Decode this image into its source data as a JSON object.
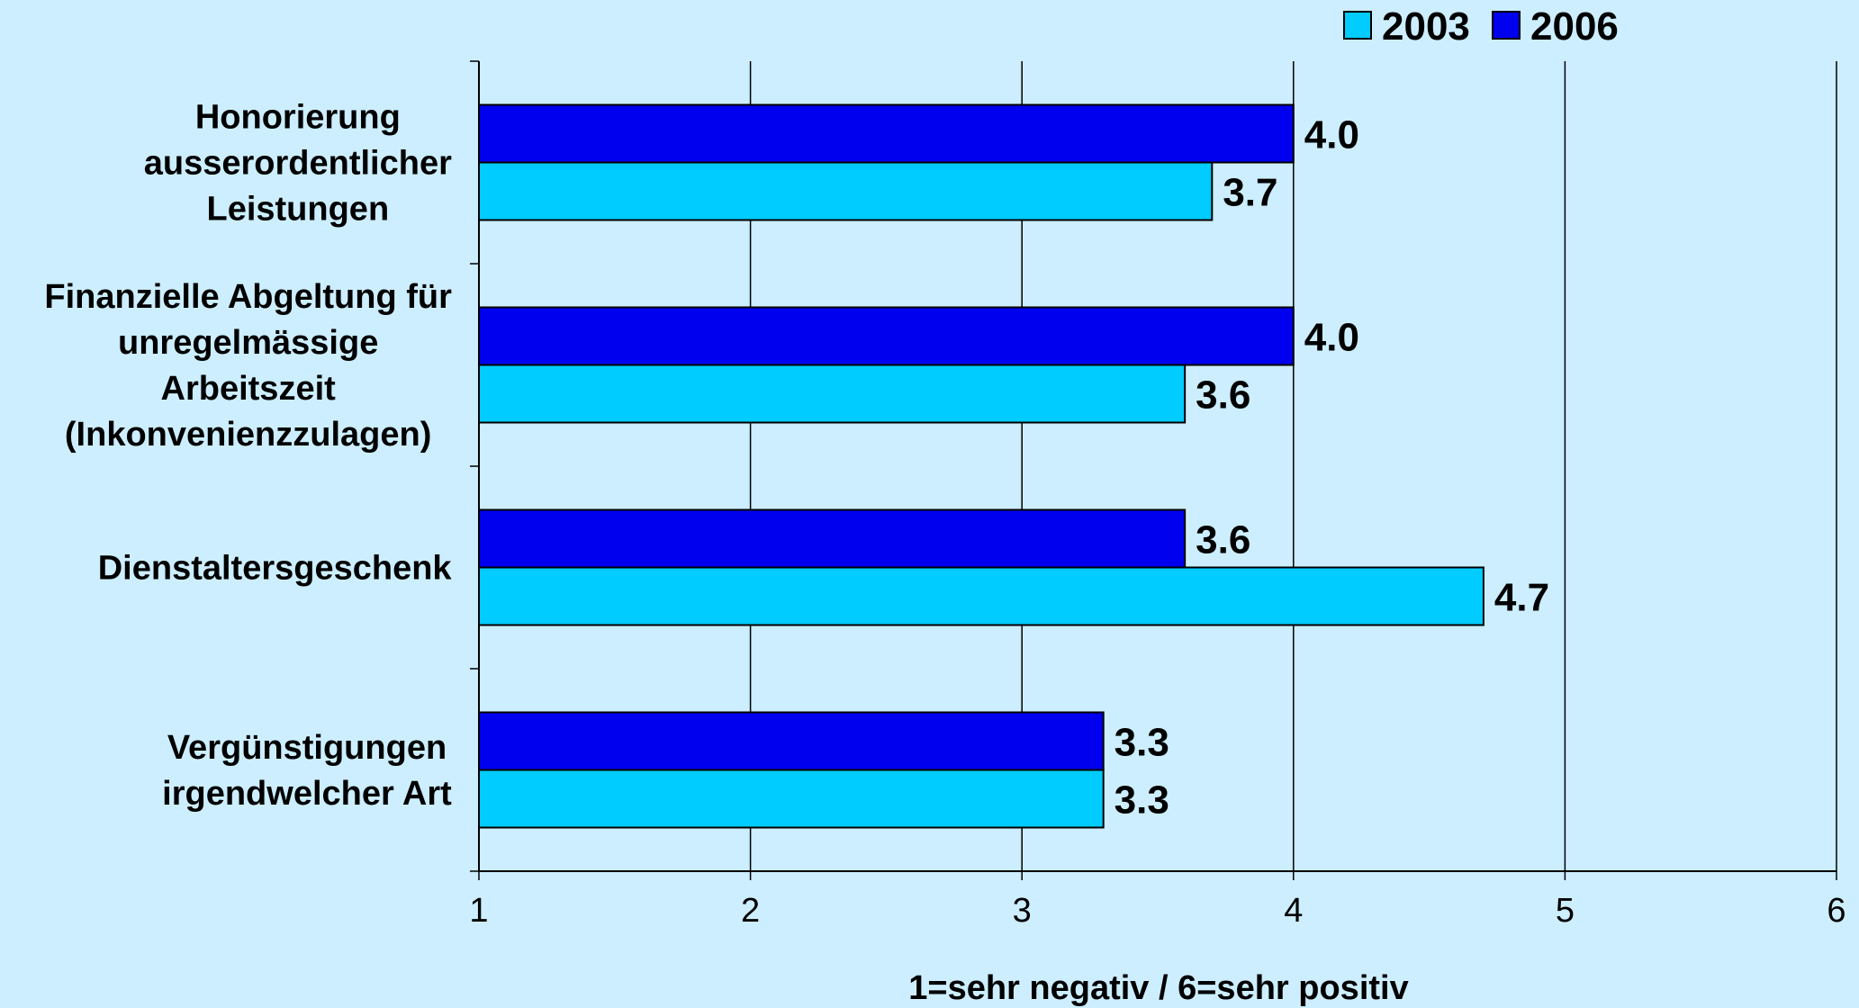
{
  "chart_data": {
    "type": "bar",
    "orientation": "horizontal",
    "categories": [
      [
        "Honorierung",
        "ausserordentlicher",
        "Leistungen"
      ],
      [
        "Finanzielle Abgeltung für",
        "unregelmässige",
        "Arbeitszeit",
        "(Inkonvenienzzulagen)"
      ],
      [
        "Dienstaltersgeschenk"
      ],
      [
        "Vergünstigungen",
        "irgendwelcher Art"
      ]
    ],
    "series": [
      {
        "name": "2006",
        "color": "#0000ee",
        "values": [
          4.0,
          4.0,
          3.6,
          3.3
        ],
        "labels": [
          "4.0",
          "4.0",
          "3.6",
          "3.3"
        ]
      },
      {
        "name": "2003",
        "color": "#00ccff",
        "values": [
          3.7,
          3.6,
          4.7,
          3.3
        ],
        "labels": [
          "3.7",
          "3.6",
          "4.7",
          "3.3"
        ]
      }
    ],
    "legend_order": [
      "2003",
      "2006"
    ],
    "xlim": [
      1,
      6
    ],
    "xticks": [
      "1",
      "2",
      "3",
      "4",
      "5",
      "6"
    ],
    "xlabel": "1=sehr negativ / 6=sehr positiv",
    "grid": true,
    "legend": "top-right"
  }
}
